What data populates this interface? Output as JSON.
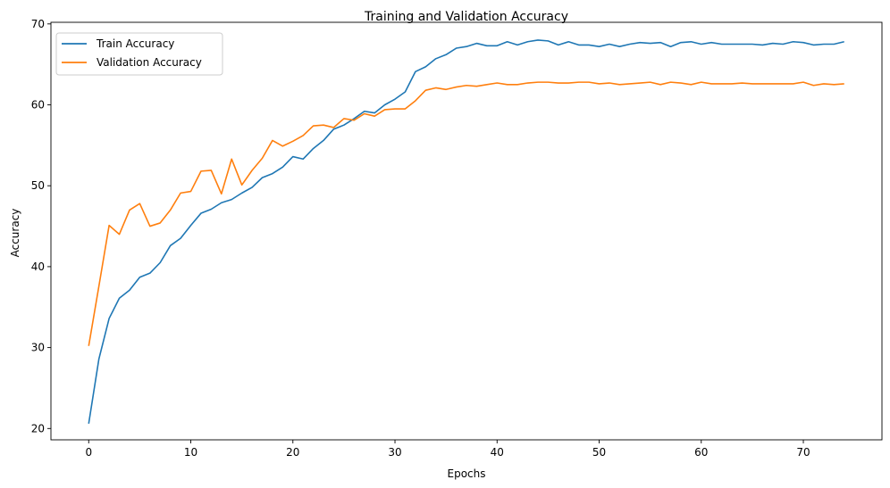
{
  "chart_data": {
    "type": "line",
    "title": "Training and Validation Accuracy",
    "xlabel": "Epochs",
    "ylabel": "Accuracy",
    "xlim": [
      -3.7,
      77.7
    ],
    "ylim": [
      18.6,
      70.2
    ],
    "xticks": [
      0,
      10,
      20,
      30,
      40,
      50,
      60,
      70
    ],
    "yticks": [
      20,
      30,
      40,
      50,
      60,
      70
    ],
    "grid": false,
    "legend_position": "top-left",
    "x": [
      0,
      1,
      2,
      3,
      4,
      5,
      6,
      7,
      8,
      9,
      10,
      11,
      12,
      13,
      14,
      15,
      16,
      17,
      18,
      19,
      20,
      21,
      22,
      23,
      24,
      25,
      26,
      27,
      28,
      29,
      30,
      31,
      32,
      33,
      34,
      35,
      36,
      37,
      38,
      39,
      40,
      41,
      42,
      43,
      44,
      45,
      46,
      47,
      48,
      49,
      50,
      51,
      52,
      53,
      54,
      55,
      56,
      57,
      58,
      59,
      60,
      61,
      62,
      63,
      64,
      65,
      66,
      67,
      68,
      69,
      70,
      71,
      72,
      73,
      74
    ],
    "series": [
      {
        "name": "Train Accuracy",
        "color": "#1f77b4",
        "values": [
          20.6,
          28.6,
          33.6,
          36.1,
          37.1,
          38.7,
          39.2,
          40.5,
          42.6,
          43.5,
          45.1,
          46.6,
          47.1,
          47.9,
          48.3,
          49.1,
          49.8,
          51.0,
          51.5,
          52.3,
          53.6,
          53.3,
          54.6,
          55.6,
          57.0,
          57.5,
          58.3,
          59.2,
          59.0,
          60.0,
          60.7,
          61.6,
          64.1,
          64.7,
          65.7,
          66.2,
          67.0,
          67.2,
          67.6,
          67.3,
          67.3,
          67.8,
          67.4,
          67.8,
          68.0,
          67.9,
          67.4,
          67.8,
          67.4,
          67.4,
          67.2,
          67.5,
          67.2,
          67.5,
          67.7,
          67.6,
          67.7,
          67.2,
          67.7,
          67.8,
          67.5,
          67.7,
          67.5,
          67.5,
          67.5,
          67.5,
          67.4,
          67.6,
          67.5,
          67.8,
          67.7,
          67.4,
          67.5,
          67.5,
          67.8
        ]
      },
      {
        "name": "Validation Accuracy",
        "color": "#ff7f0e",
        "values": [
          30.2,
          37.6,
          45.1,
          44.0,
          47.0,
          47.8,
          45.0,
          45.4,
          47.0,
          49.1,
          49.3,
          51.8,
          51.9,
          49.0,
          53.3,
          50.1,
          51.9,
          53.4,
          55.6,
          54.9,
          55.5,
          56.2,
          57.4,
          57.5,
          57.2,
          58.3,
          58.1,
          58.9,
          58.6,
          59.4,
          59.5,
          59.5,
          60.5,
          61.8,
          62.1,
          61.9,
          62.2,
          62.4,
          62.3,
          62.5,
          62.7,
          62.5,
          62.5,
          62.7,
          62.8,
          62.8,
          62.7,
          62.7,
          62.8,
          62.8,
          62.6,
          62.7,
          62.5,
          62.6,
          62.7,
          62.8,
          62.5,
          62.8,
          62.7,
          62.5,
          62.8,
          62.6,
          62.6,
          62.6,
          62.7,
          62.6,
          62.6,
          62.6,
          62.6,
          62.6,
          62.8,
          62.4,
          62.6,
          62.5,
          62.6
        ]
      }
    ]
  }
}
